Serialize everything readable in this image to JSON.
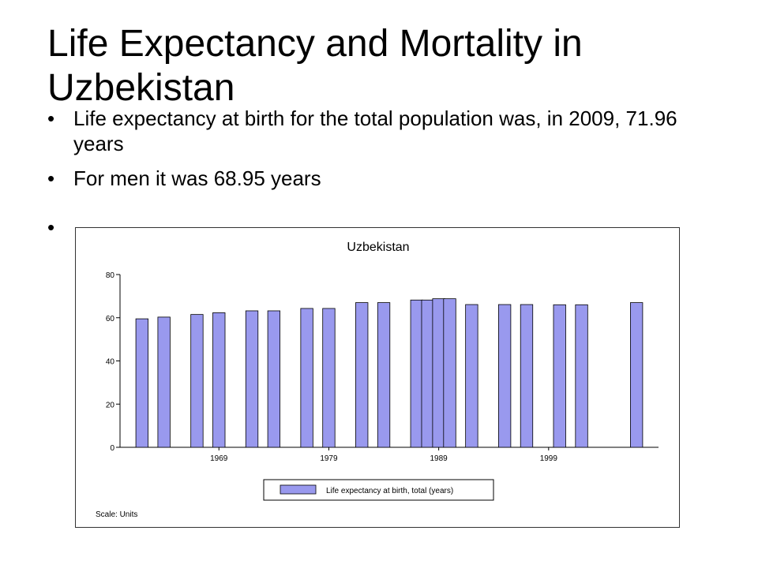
{
  "slide": {
    "title": "Life Expectancy and Mortality in Uzbekistan",
    "bullets": [
      "Life expectancy at birth for the total population was, in 2009, 71.96 years",
      "For men it was 68.95 years",
      ""
    ]
  },
  "chart_data": {
    "type": "bar",
    "title": "Uzbekistan",
    "xlabel": "",
    "ylabel": "",
    "scale_note": "Scale: Units",
    "x": [
      1962,
      1964,
      1967,
      1969,
      1972,
      1974,
      1977,
      1979,
      1982,
      1984,
      1987,
      1988,
      1989,
      1990,
      1992,
      1995,
      1997,
      2000,
      2002,
      2007
    ],
    "series": [
      {
        "name": "Life expectancy at birth, total (years)",
        "color": "#9999ee",
        "values": [
          59.5,
          60.3,
          61.5,
          62.3,
          63.2,
          63.2,
          64.3,
          64.3,
          67.0,
          67.0,
          68.2,
          68.2,
          68.8,
          68.8,
          66.1,
          66.1,
          66.1,
          66.0,
          66.0,
          67.0
        ]
      }
    ],
    "xticks": [
      "1969",
      "1979",
      "1989",
      "1999"
    ],
    "yticks": [
      "0",
      "20",
      "40",
      "60",
      "80"
    ],
    "ylim": [
      0,
      80
    ],
    "xlim": [
      1960,
      2009
    ],
    "grid": false,
    "legend_position": "bottom"
  }
}
